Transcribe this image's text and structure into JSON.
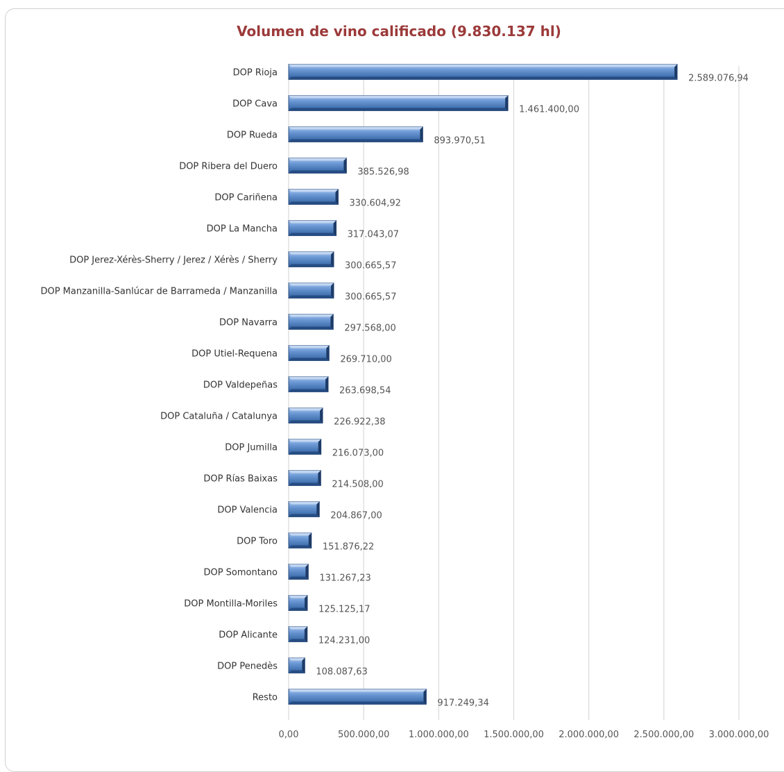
{
  "chart_data": {
    "type": "bar",
    "orientation": "horizontal",
    "title": "Volumen de vino calificado (9.830.137 hl)",
    "xlim": [
      0,
      3000000
    ],
    "ticks": [
      0,
      500000,
      1000000,
      1500000,
      2000000,
      2500000,
      3000000
    ],
    "tick_labels": [
      "0,00",
      "500.000,00",
      "1.000.000,00",
      "1.500.000,00",
      "2.000.000,00",
      "2.500.000,00",
      "3.000.000,00"
    ],
    "grid": true,
    "bar_color": "#4f81bd",
    "categories": [
      "DOP Rioja",
      "DOP Cava",
      "DOP Rueda",
      "DOP Ribera del Duero",
      "DOP Cariñena",
      "DOP La Mancha",
      "DOP Jerez-Xérès-Sherry / Jerez / Xérès / Sherry",
      "DOP Manzanilla-Sanlúcar de Barrameda / Manzanilla",
      "DOP Navarra",
      "DOP Utiel-Requena",
      "DOP Valdepeñas",
      "DOP Cataluña / Catalunya",
      "DOP Jumilla",
      "DOP Rías Baixas",
      "DOP Valencia",
      "DOP Toro",
      "DOP Somontano",
      "DOP Montilla-Moriles",
      "DOP Alicante",
      "DOP Penedès",
      "Resto"
    ],
    "values": [
      2589076.94,
      1461400.0,
      893970.51,
      385526.98,
      330604.92,
      317043.07,
      300665.57,
      300665.57,
      297568.0,
      269710.0,
      263698.54,
      226922.38,
      216073.0,
      214508.0,
      204867.0,
      151876.22,
      131267.23,
      125125.17,
      124231.0,
      108087.63,
      917249.34
    ],
    "value_labels": [
      "2.589.076,94",
      "1.461.400,00",
      "893.970,51",
      "385.526,98",
      "330.604,92",
      "317.043,07",
      "300.665,57",
      "300.665,57",
      "297.568,00",
      "269.710,00",
      "263.698,54",
      "226.922,38",
      "216.073,00",
      "214.508,00",
      "204.867,00",
      "151.876,22",
      "131.267,23",
      "125.125,17",
      "124.231,00",
      "108.087,63",
      "917.249,34"
    ]
  }
}
